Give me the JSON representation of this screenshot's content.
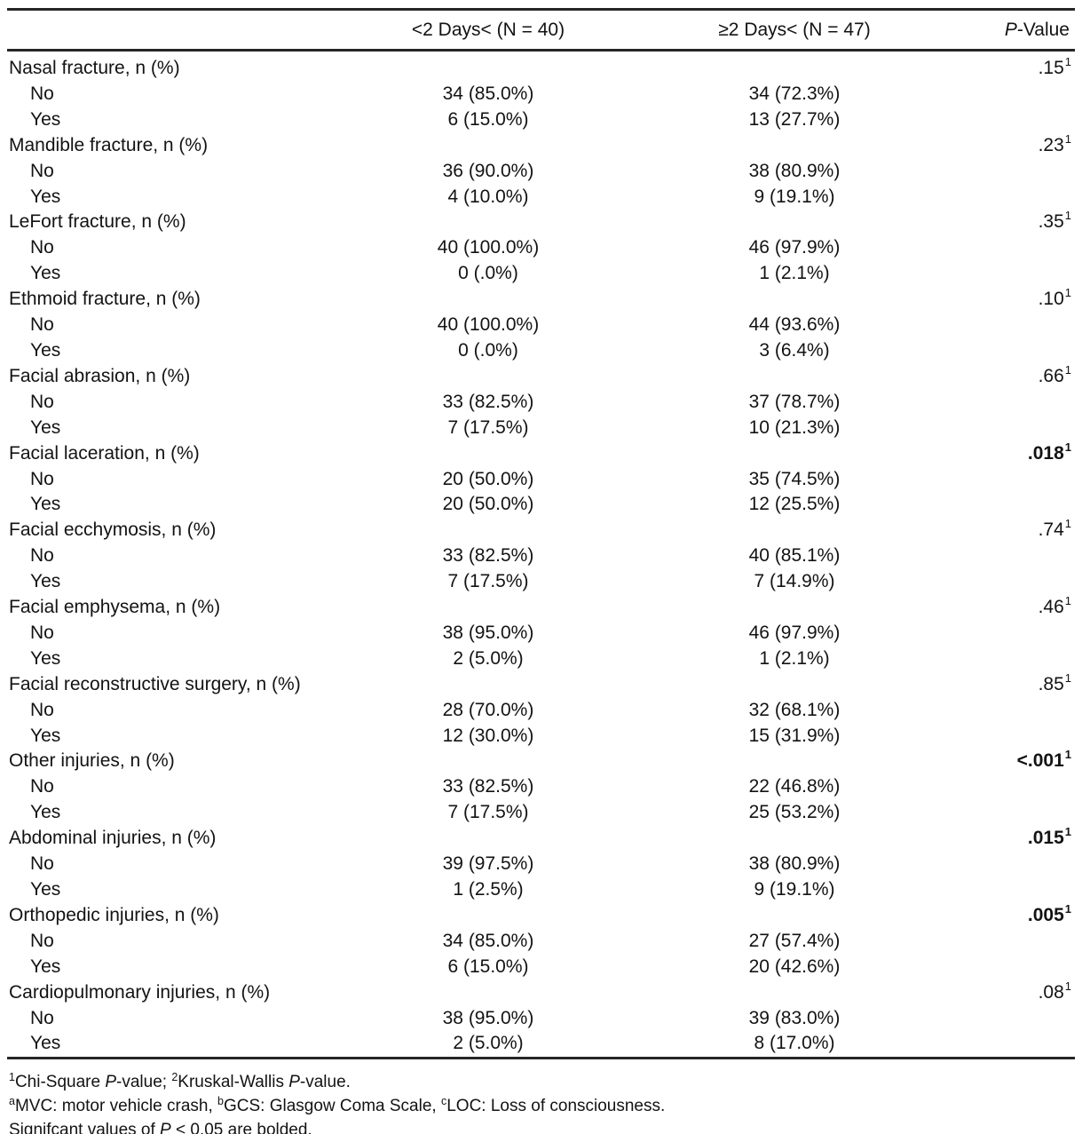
{
  "table": {
    "header": {
      "group1": "<2 Days< (N = 40)",
      "group2": "≥2 Days< (N = 47)",
      "p_italic": "P",
      "p_rest": "-Value"
    },
    "sections": [
      {
        "label": "Nasal fracture, n (%)",
        "p_value": ".15",
        "p_sup": "1",
        "p_bold": false,
        "rows": [
          {
            "label": "No",
            "group1": "34 (85.0%)",
            "group2": "34 (72.3%)"
          },
          {
            "label": "Yes",
            "group1": "6 (15.0%)",
            "group2": "13 (27.7%)"
          }
        ]
      },
      {
        "label": "Mandible fracture, n (%)",
        "p_value": ".23",
        "p_sup": "1",
        "p_bold": false,
        "rows": [
          {
            "label": "No",
            "group1": "36 (90.0%)",
            "group2": "38 (80.9%)"
          },
          {
            "label": "Yes",
            "group1": "4 (10.0%)",
            "group2": "9 (19.1%)"
          }
        ]
      },
      {
        "label": "LeFort fracture, n (%)",
        "p_value": ".35",
        "p_sup": "1",
        "p_bold": false,
        "rows": [
          {
            "label": "No",
            "group1": "40 (100.0%)",
            "group2": "46 (97.9%)"
          },
          {
            "label": "Yes",
            "group1": "0 (.0%)",
            "group2": "1 (2.1%)"
          }
        ]
      },
      {
        "label": "Ethmoid fracture, n (%)",
        "p_value": ".10",
        "p_sup": "1",
        "p_bold": false,
        "rows": [
          {
            "label": "No",
            "group1": "40 (100.0%)",
            "group2": "44 (93.6%)"
          },
          {
            "label": "Yes",
            "group1": "0 (.0%)",
            "group2": "3 (6.4%)"
          }
        ]
      },
      {
        "label": "Facial abrasion, n (%)",
        "p_value": ".66",
        "p_sup": "1",
        "p_bold": false,
        "rows": [
          {
            "label": "No",
            "group1": "33 (82.5%)",
            "group2": "37 (78.7%)"
          },
          {
            "label": "Yes",
            "group1": "7 (17.5%)",
            "group2": "10 (21.3%)"
          }
        ]
      },
      {
        "label": "Facial laceration, n (%)",
        "p_value": ".018",
        "p_sup": "1",
        "p_bold": true,
        "rows": [
          {
            "label": "No",
            "group1": "20 (50.0%)",
            "group2": "35 (74.5%)"
          },
          {
            "label": "Yes",
            "group1": "20 (50.0%)",
            "group2": "12 (25.5%)"
          }
        ]
      },
      {
        "label": "Facial ecchymosis, n (%)",
        "p_value": ".74",
        "p_sup": "1",
        "p_bold": false,
        "rows": [
          {
            "label": "No",
            "group1": "33 (82.5%)",
            "group2": "40 (85.1%)"
          },
          {
            "label": "Yes",
            "group1": "7 (17.5%)",
            "group2": "7 (14.9%)"
          }
        ]
      },
      {
        "label": "Facial emphysema, n (%)",
        "p_value": ".46",
        "p_sup": "1",
        "p_bold": false,
        "rows": [
          {
            "label": "No",
            "group1": "38 (95.0%)",
            "group2": "46 (97.9%)"
          },
          {
            "label": "Yes",
            "group1": "2 (5.0%)",
            "group2": "1 (2.1%)"
          }
        ]
      },
      {
        "label": "Facial reconstructive surgery, n (%)",
        "p_value": ".85",
        "p_sup": "1",
        "p_bold": false,
        "rows": [
          {
            "label": "No",
            "group1": "28 (70.0%)",
            "group2": "32 (68.1%)"
          },
          {
            "label": "Yes",
            "group1": "12 (30.0%)",
            "group2": "15 (31.9%)"
          }
        ]
      },
      {
        "label": "Other injuries, n (%)",
        "p_value": "<.001",
        "p_sup": "1",
        "p_bold": true,
        "rows": [
          {
            "label": "No",
            "group1": "33 (82.5%)",
            "group2": "22 (46.8%)"
          },
          {
            "label": "Yes",
            "group1": "7 (17.5%)",
            "group2": "25 (53.2%)"
          }
        ]
      },
      {
        "label": "Abdominal injuries, n (%)",
        "p_value": ".015",
        "p_sup": "1",
        "p_bold": true,
        "rows": [
          {
            "label": "No",
            "group1": "39 (97.5%)",
            "group2": "38 (80.9%)"
          },
          {
            "label": "Yes",
            "group1": "1 (2.5%)",
            "group2": "9 (19.1%)"
          }
        ]
      },
      {
        "label": "Orthopedic injuries, n (%)",
        "p_value": ".005",
        "p_sup": "1",
        "p_bold": true,
        "rows": [
          {
            "label": "No",
            "group1": "34 (85.0%)",
            "group2": "27 (57.4%)"
          },
          {
            "label": "Yes",
            "group1": "6 (15.0%)",
            "group2": "20 (42.6%)"
          }
        ]
      },
      {
        "label": "Cardiopulmonary injuries, n (%)",
        "p_value": ".08",
        "p_sup": "1",
        "p_bold": false,
        "rows": [
          {
            "label": "No",
            "group1": "38 (95.0%)",
            "group2": "39 (83.0%)"
          },
          {
            "label": "Yes",
            "group1": "2 (5.0%)",
            "group2": "8 (17.0%)"
          }
        ]
      }
    ],
    "footnotes": {
      "line1": {
        "sup1": "1",
        "t1": "Chi-Square ",
        "p1": "P",
        "t2": "-value; ",
        "sup2": "2",
        "t3": "Kruskal-Wallis ",
        "p2": "P",
        "t4": "-value."
      },
      "line2": {
        "supa": "a",
        "t1": "MVC: motor vehicle crash, ",
        "supb": "b",
        "t2": "GCS: Glasgow Coma Scale, ",
        "supc": "c",
        "t3": "LOC: Loss of consciousness."
      },
      "line3": {
        "t1": "Signifcant values of ",
        "p": "P",
        "t2": " < 0.05 are bolded."
      }
    }
  }
}
